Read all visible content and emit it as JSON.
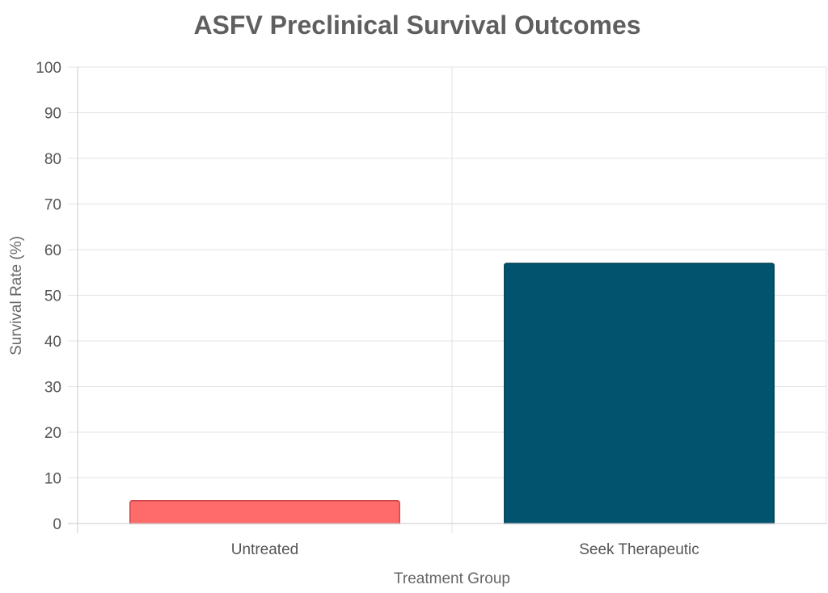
{
  "chart_data": {
    "type": "bar",
    "title": "ASFV Preclinical Survival Outcomes",
    "xlabel": "Treatment Group",
    "ylabel": "Survival Rate (%)",
    "categories": [
      "Untreated",
      "Seek Therapeutic"
    ],
    "values": [
      5,
      57
    ],
    "colors": [
      "#ff6b6b",
      "#01536e"
    ],
    "border_colors": [
      "#c94545",
      "#003f54"
    ],
    "ylim": [
      0,
      100
    ],
    "yticks": [
      "0",
      "10",
      "20",
      "30",
      "40",
      "50",
      "60",
      "70",
      "80",
      "90",
      "100"
    ],
    "grid": true,
    "legend": "none"
  }
}
